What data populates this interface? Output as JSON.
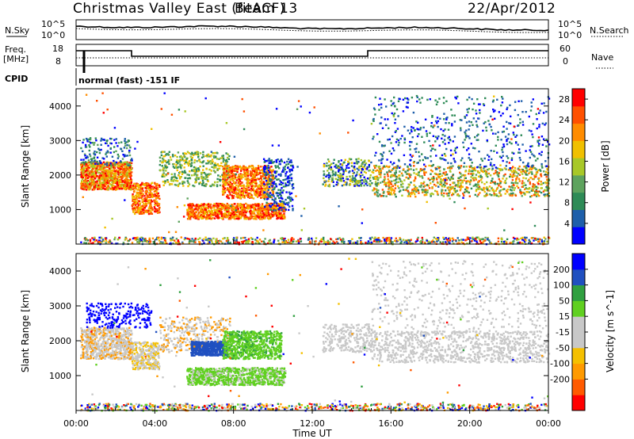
{
  "header": {
    "title": "Christmas Valley East (fitACF)",
    "beam": "Beam 13",
    "date": "22/Apr/2012"
  },
  "top_panels": {
    "nsky_label": "N.Sky",
    "nsky_ticks": [
      "10^5",
      "10^0"
    ],
    "nsearch_label": "N.Search",
    "nsearch_ticks": [
      "10^5",
      "10^0"
    ],
    "freq_label_1": "Freq.",
    "freq_label_2": "[MHz]",
    "freq_ticks": [
      "18",
      "8"
    ],
    "nave_label": "Nave",
    "nave_ticks": [
      "60",
      "0"
    ],
    "cpid_label": "CPID",
    "cpid_value": "normal (fast) -151 IF"
  },
  "colors": {
    "power_scale": [
      "#0000ff",
      "#1e5faa",
      "#2e8b57",
      "#5ea35e",
      "#a8c828",
      "#f0c000",
      "#ff8c00",
      "#ff5000",
      "#ff0000"
    ],
    "velocity_scale": [
      "#ff0000",
      "#ff5a00",
      "#ff9a00",
      "#f5c000",
      "#c8c8c8",
      "#c8c8c8",
      "#60d020",
      "#30a040",
      "#2050c0",
      "#0000ff"
    ]
  },
  "chart_data": [
    {
      "type": "heatmap",
      "name": "power",
      "ylabel": "Slant Range [km]",
      "yticks": [
        "1000",
        "2000",
        "3000",
        "4000"
      ],
      "ylim": [
        0,
        4500
      ],
      "colorbar_label": "Power [dB]",
      "colorbar_ticks": [
        "4",
        "8",
        "12",
        "16",
        "20",
        "24",
        "28"
      ],
      "colorbar_range": [
        0,
        30
      ]
    },
    {
      "type": "heatmap",
      "name": "velocity",
      "ylabel": "Slant Range [km]",
      "yticks": [
        "1000",
        "2000",
        "3000",
        "4000"
      ],
      "ylim": [
        0,
        4500
      ],
      "colorbar_label": "Velocity [m s^-1]",
      "colorbar_ticks": [
        "200",
        "100",
        "50",
        "15",
        "-15",
        "-50",
        "-100",
        "-200"
      ],
      "xlabel": "Time UT",
      "xticks": [
        "00:00",
        "04:00",
        "08:00",
        "12:00",
        "16:00",
        "20:00",
        "00:00"
      ],
      "xlim_hours": [
        0,
        24
      ]
    }
  ]
}
